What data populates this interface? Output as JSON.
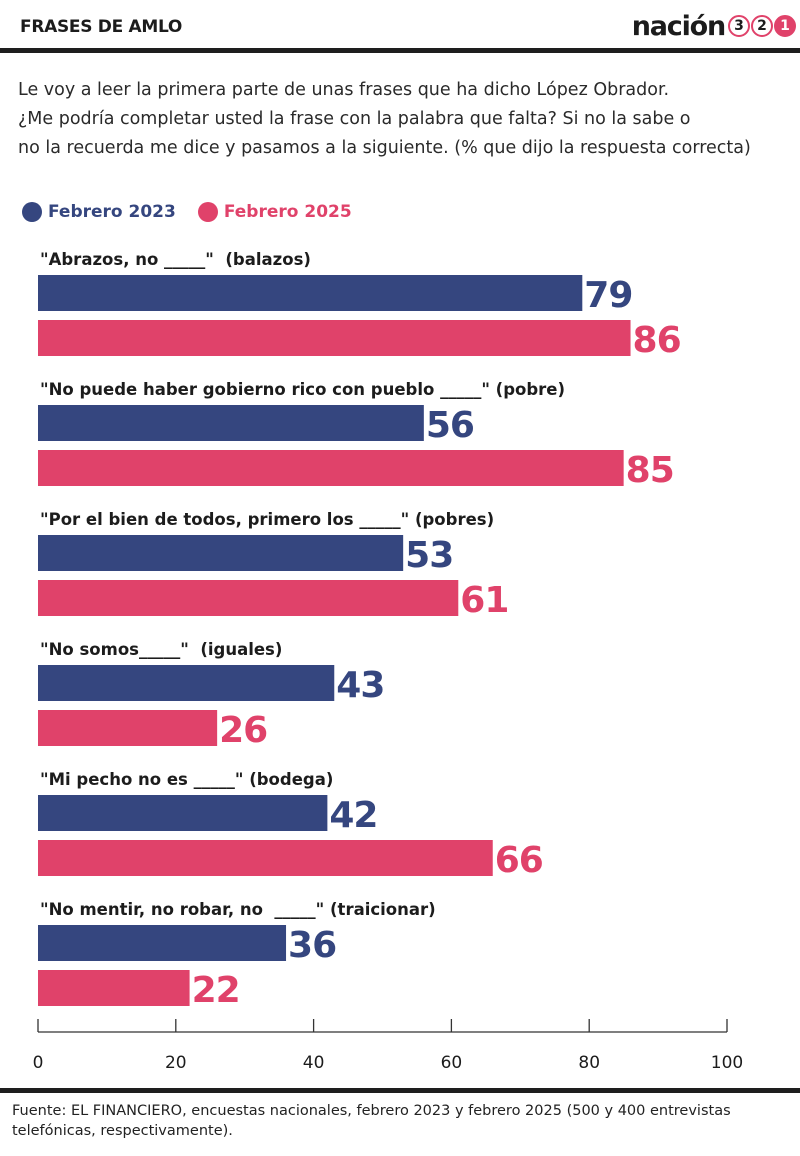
{
  "header": {
    "title": "FRASES DE AMLO",
    "brand_word": "nación",
    "brand_digits": [
      "3",
      "2",
      "1"
    ]
  },
  "intro": {
    "lines": [
      "Le voy a leer la primera parte de unas frases que ha dicho López Obrador.",
      "¿Me podría completar usted la frase con la palabra que falta? Si no la sabe o",
      "no la recuerda me dice y pasamos a la siguiente. (% que dijo la respuesta correcta)"
    ]
  },
  "colors": {
    "feb2023": "#35467f",
    "feb2025": "#e0426a",
    "axis": "#333333",
    "text": "#1c1c1c"
  },
  "chart_data": {
    "type": "bar",
    "orientation": "horizontal",
    "categories": [
      "\"Abrazos, no _____\"  (balazos)",
      "\"No puede haber gobierno rico con pueblo _____\" (pobre)",
      "\"Por el bien de todos, primero los _____\" (pobres)",
      "\"No somos_____\"  (iguales)",
      "\"Mi pecho no es _____\" (bodega)",
      "\"No mentir, no robar, no  _____\" (traicionar)"
    ],
    "series": [
      {
        "name": "Febrero 2023",
        "values": [
          79,
          56,
          53,
          43,
          42,
          36
        ]
      },
      {
        "name": "Febrero 2025",
        "values": [
          86,
          85,
          61,
          26,
          66,
          22
        ]
      }
    ],
    "xlim": [
      0,
      100
    ],
    "xticks": [
      "0",
      "20",
      "40",
      "60",
      "80",
      "100"
    ],
    "legend_position": "top-left",
    "grid": false
  },
  "footer": {
    "lines": [
      "Fuente: EL FINANCIERO, encuestas nacionales, febrero 2023 y febrero 2025 (500 y 400 entrevistas",
      "telefónicas, respectivamente)."
    ]
  }
}
